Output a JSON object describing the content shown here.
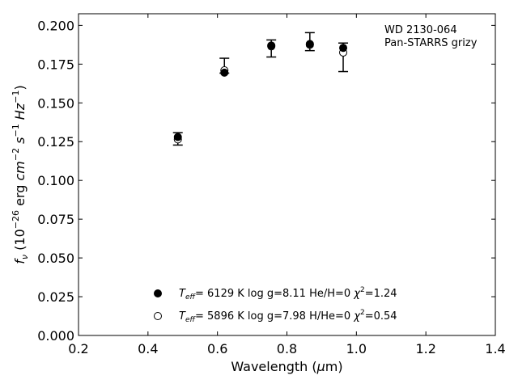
{
  "chart_data": {
    "type": "scatter",
    "xlabel_parts": [
      "Wavelength (",
      "μ",
      "m)"
    ],
    "ylabel_parts": {
      "f": "f",
      "nu": "ν",
      "open": " (10",
      "exp1": "−26",
      "mid": " erg ",
      "cm": "cm",
      "exp2": "−2",
      "s": " s",
      "exp3": "−1",
      "hz": " Hz",
      "exp4": "−1",
      "close": ")"
    },
    "xlim": [
      0.2,
      1.4
    ],
    "ylim": [
      0.0,
      0.2075
    ],
    "xticks": [
      0.2,
      0.4,
      0.6,
      0.8,
      1.0,
      1.2,
      1.4
    ],
    "xtick_labels": [
      "0.2",
      "0.4",
      "0.6",
      "0.8",
      "1.0",
      "1.2",
      "1.4"
    ],
    "yticks": [
      0.0,
      0.025,
      0.05,
      0.075,
      0.1,
      0.125,
      0.15,
      0.175,
      0.2
    ],
    "ytick_labels": [
      "0.000",
      "0.025",
      "0.050",
      "0.075",
      "0.100",
      "0.125",
      "0.150",
      "0.175",
      "0.200"
    ],
    "grid": false,
    "annotation": [
      "WD 2130-064",
      "Pan-STARRS grizy"
    ],
    "observed": {
      "x": [
        0.486,
        0.62,
        0.755,
        0.866,
        0.962
      ],
      "y": [
        0.1268,
        0.174,
        0.1851,
        0.1895,
        0.1794
      ],
      "yerr": [
        0.004,
        0.0048,
        0.0055,
        0.0058,
        0.0092
      ]
    },
    "series": [
      {
        "marker": "filled",
        "x": [
          0.486,
          0.62,
          0.755,
          0.866,
          0.962
        ],
        "y": [
          0.128,
          0.1695,
          0.187,
          0.188,
          0.1855
        ],
        "legend": {
          "teff": "T",
          "teff_sub": "eff",
          "text": "=  6129 K  log g=8.11  He/H=0  ",
          "chi": "χ",
          "chi_sup": "2",
          "chi_val": "=1.24"
        }
      },
      {
        "marker": "open",
        "x": [
          0.486,
          0.62,
          0.755,
          0.866,
          0.962
        ],
        "y": [
          0.1265,
          0.171,
          0.1865,
          0.1875,
          0.1825
        ],
        "legend": {
          "teff": "T",
          "teff_sub": "eff",
          "text": "=  5896 K  log g=7.98  H/He=0  ",
          "chi": "χ",
          "chi_sup": "2",
          "chi_val": "=0.54"
        }
      }
    ],
    "legend_position": "lower-center"
  }
}
